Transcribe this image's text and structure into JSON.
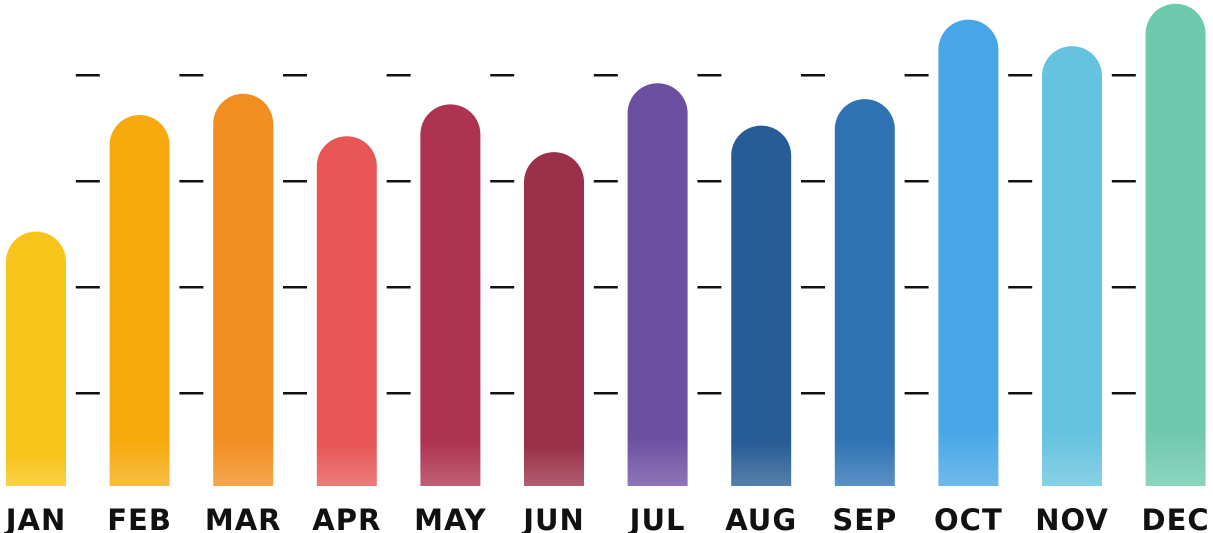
{
  "chart_data": {
    "type": "bar",
    "title": "",
    "xlabel": "",
    "ylabel": "",
    "categories": [
      "JAN",
      "FEB",
      "MAR",
      "APR",
      "MAY",
      "JUN",
      "JUL",
      "AUG",
      "SEP",
      "OCT",
      "NOV",
      "DEC"
    ],
    "values": [
      48,
      70,
      74,
      66,
      72,
      63,
      76,
      68,
      73,
      88,
      83,
      91
    ],
    "colors": [
      "#F8C41A",
      "#F6AA0E",
      "#F28D1F",
      "#E85656",
      "#AE3251",
      "#9A3049",
      "#6D4FA2",
      "#275C94",
      "#2E72B4",
      "#47A6E7",
      "#66C3DF",
      "#6DC8AC"
    ],
    "ylim": [
      0,
      92
    ],
    "grid": "short dashes at four levels, no axis tick labels",
    "gridlines": [
      17.5,
      37.5,
      57.5,
      77.5
    ],
    "legend": "none",
    "bar_shape": "rounded top"
  }
}
